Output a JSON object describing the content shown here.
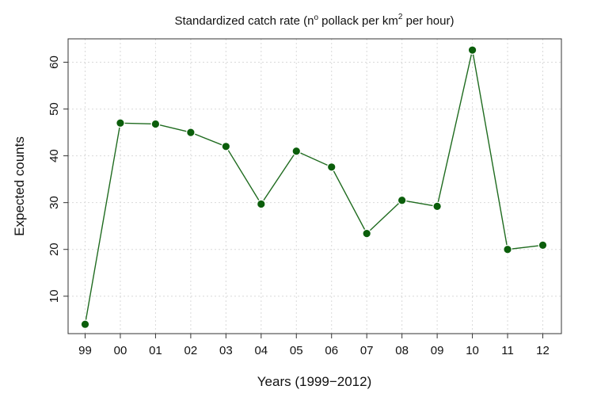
{
  "chart_data": {
    "type": "line",
    "title": {
      "prefix": "Standardized catch rate (n",
      "ordinal": "o",
      "middle": " pollack per km",
      "superscript": "2",
      "suffix": " per hour)"
    },
    "xlabel": "Years (1999−2012)",
    "ylabel": "Expected counts",
    "categories": [
      "99",
      "00",
      "01",
      "02",
      "03",
      "04",
      "05",
      "06",
      "07",
      "08",
      "09",
      "10",
      "11",
      "12"
    ],
    "values": [
      4,
      47,
      46.8,
      45,
      42,
      29.7,
      41,
      37.6,
      23.4,
      30.5,
      29.2,
      62.6,
      20,
      20.9
    ],
    "ylim": [
      2,
      65
    ],
    "yticks": [
      10,
      20,
      30,
      40,
      50,
      60
    ],
    "grid": true,
    "legend": "none",
    "colors": {
      "line": "#1f6b1f",
      "point": "#0b5e0b",
      "grid": "#d9d9d9",
      "axis": "#333333"
    }
  }
}
